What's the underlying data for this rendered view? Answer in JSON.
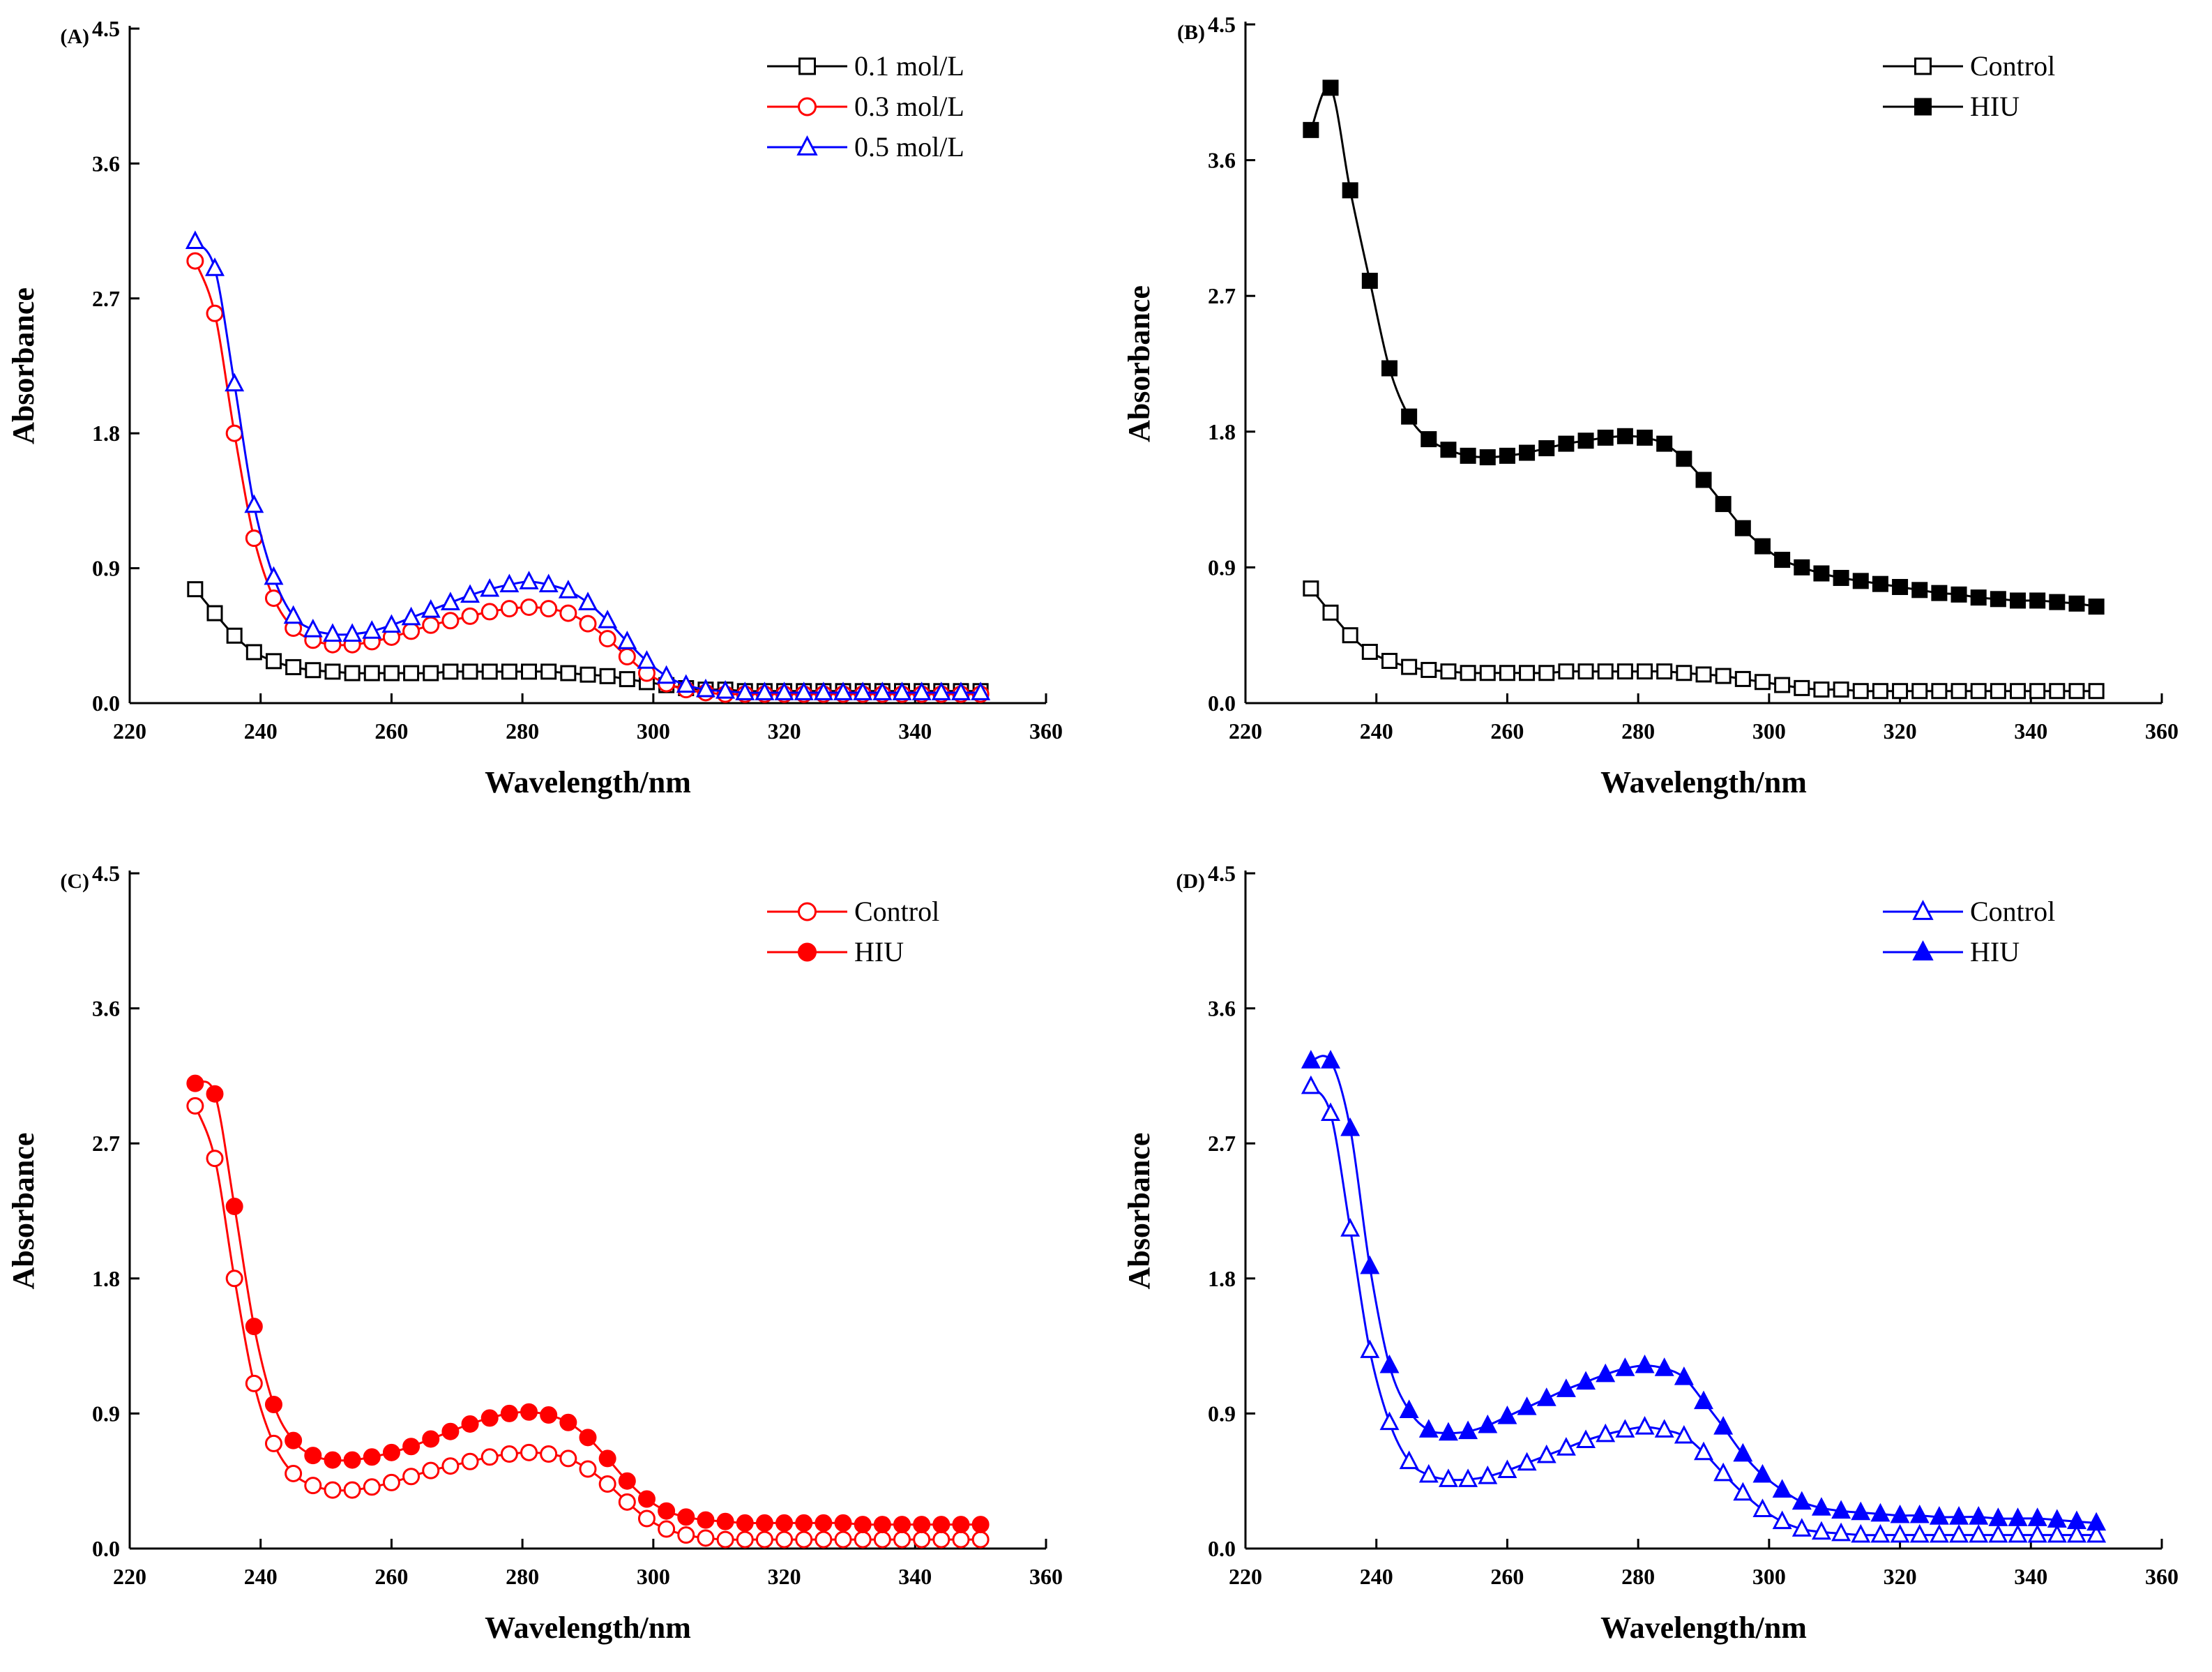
{
  "figure": {
    "panels": [
      {
        "label": "(A)",
        "legend": [
          "0.1 mol/L",
          "0.3 mol/L",
          "0.5 mol/L"
        ]
      },
      {
        "label": "(B)",
        "legend": [
          "Control",
          "HIU"
        ]
      },
      {
        "label": "(C)",
        "legend": [
          "Control",
          "HIU"
        ]
      },
      {
        "label": "(D)",
        "legend": [
          "Control",
          "HIU"
        ]
      }
    ]
  },
  "chart_data": [
    {
      "type": "line",
      "panel_label": "(A)",
      "xlabel": "Wavelength/nm",
      "ylabel": "Absorbance",
      "xlim": [
        220,
        360
      ],
      "ylim": [
        0,
        4.5
      ],
      "xticks": [
        220,
        240,
        260,
        280,
        300,
        320,
        340,
        360
      ],
      "yticks": [
        0.0,
        0.9,
        1.8,
        2.7,
        3.6,
        4.5
      ],
      "grid": false,
      "legend_position": "top-right",
      "x": {
        "start": 230,
        "step": 3,
        "count": 41
      },
      "series": [
        {
          "name": "0.1 mol/L",
          "color": "#000000",
          "marker": "square",
          "filled": false,
          "values": [
            0.76,
            0.6,
            0.45,
            0.34,
            0.28,
            0.24,
            0.22,
            0.21,
            0.2,
            0.2,
            0.2,
            0.2,
            0.2,
            0.21,
            0.21,
            0.21,
            0.21,
            0.21,
            0.21,
            0.2,
            0.19,
            0.18,
            0.16,
            0.14,
            0.12,
            0.1,
            0.09,
            0.09,
            0.08,
            0.08,
            0.08,
            0.08,
            0.08,
            0.08,
            0.08,
            0.08,
            0.08,
            0.08,
            0.08,
            0.08,
            0.08
          ]
        },
        {
          "name": "0.3 mol/L",
          "color": "#ff0000",
          "marker": "circle",
          "filled": false,
          "values": [
            2.95,
            2.6,
            1.8,
            1.1,
            0.7,
            0.5,
            0.42,
            0.39,
            0.39,
            0.41,
            0.44,
            0.48,
            0.52,
            0.55,
            0.58,
            0.61,
            0.63,
            0.64,
            0.63,
            0.6,
            0.53,
            0.43,
            0.31,
            0.2,
            0.13,
            0.09,
            0.07,
            0.06,
            0.06,
            0.06,
            0.06,
            0.06,
            0.06,
            0.06,
            0.06,
            0.06,
            0.06,
            0.06,
            0.06,
            0.06,
            0.06
          ]
        },
        {
          "name": "0.5 mol/L",
          "color": "#0000ff",
          "marker": "triangle",
          "filled": false,
          "values": [
            3.08,
            2.9,
            2.13,
            1.32,
            0.84,
            0.58,
            0.49,
            0.46,
            0.46,
            0.48,
            0.52,
            0.57,
            0.62,
            0.67,
            0.72,
            0.76,
            0.79,
            0.81,
            0.79,
            0.75,
            0.67,
            0.55,
            0.41,
            0.28,
            0.18,
            0.12,
            0.09,
            0.08,
            0.07,
            0.07,
            0.07,
            0.07,
            0.07,
            0.07,
            0.07,
            0.07,
            0.07,
            0.07,
            0.07,
            0.07,
            0.07
          ]
        }
      ]
    },
    {
      "type": "line",
      "panel_label": "(B)",
      "xlabel": "Wavelength/nm",
      "ylabel": "Absorbance",
      "xlim": [
        220,
        360
      ],
      "ylim": [
        0,
        4.5
      ],
      "xticks": [
        220,
        240,
        260,
        280,
        300,
        320,
        340,
        360
      ],
      "yticks": [
        0.0,
        0.9,
        1.8,
        2.7,
        3.6,
        4.5
      ],
      "grid": false,
      "legend_position": "top-right",
      "x": {
        "start": 230,
        "step": 3,
        "count": 41
      },
      "series": [
        {
          "name": "Control",
          "color": "#000000",
          "marker": "square",
          "filled": false,
          "values": [
            0.76,
            0.6,
            0.45,
            0.34,
            0.28,
            0.24,
            0.22,
            0.21,
            0.2,
            0.2,
            0.2,
            0.2,
            0.2,
            0.21,
            0.21,
            0.21,
            0.21,
            0.21,
            0.21,
            0.2,
            0.19,
            0.18,
            0.16,
            0.14,
            0.12,
            0.1,
            0.09,
            0.09,
            0.08,
            0.08,
            0.08,
            0.08,
            0.08,
            0.08,
            0.08,
            0.08,
            0.08,
            0.08,
            0.08,
            0.08,
            0.08
          ]
        },
        {
          "name": "HIU",
          "color": "#000000",
          "marker": "square",
          "filled": true,
          "values": [
            3.8,
            4.08,
            3.4,
            2.8,
            2.22,
            1.9,
            1.75,
            1.68,
            1.64,
            1.63,
            1.64,
            1.66,
            1.69,
            1.72,
            1.74,
            1.76,
            1.77,
            1.76,
            1.72,
            1.62,
            1.48,
            1.32,
            1.16,
            1.04,
            0.95,
            0.9,
            0.86,
            0.83,
            0.81,
            0.79,
            0.77,
            0.75,
            0.73,
            0.72,
            0.7,
            0.69,
            0.68,
            0.68,
            0.67,
            0.66,
            0.64
          ]
        }
      ]
    },
    {
      "type": "line",
      "panel_label": "(C)",
      "xlabel": "Wavelength/nm",
      "ylabel": "Absorbance",
      "xlim": [
        220,
        360
      ],
      "ylim": [
        0,
        4.5
      ],
      "xticks": [
        220,
        240,
        260,
        280,
        300,
        320,
        340,
        360
      ],
      "yticks": [
        0.0,
        0.9,
        1.8,
        2.7,
        3.6,
        4.5
      ],
      "grid": false,
      "legend_position": "top-right",
      "x": {
        "start": 230,
        "step": 3,
        "count": 41
      },
      "series": [
        {
          "name": "Control",
          "color": "#ff0000",
          "marker": "circle",
          "filled": false,
          "values": [
            2.95,
            2.6,
            1.8,
            1.1,
            0.7,
            0.5,
            0.42,
            0.39,
            0.39,
            0.41,
            0.44,
            0.48,
            0.52,
            0.55,
            0.58,
            0.61,
            0.63,
            0.64,
            0.63,
            0.6,
            0.53,
            0.43,
            0.31,
            0.2,
            0.13,
            0.09,
            0.07,
            0.06,
            0.06,
            0.06,
            0.06,
            0.06,
            0.06,
            0.06,
            0.06,
            0.06,
            0.06,
            0.06,
            0.06,
            0.06,
            0.06
          ]
        },
        {
          "name": "HIU",
          "color": "#ff0000",
          "marker": "circle",
          "filled": true,
          "values": [
            3.1,
            3.03,
            2.28,
            1.48,
            0.96,
            0.72,
            0.62,
            0.59,
            0.59,
            0.61,
            0.64,
            0.68,
            0.73,
            0.78,
            0.83,
            0.87,
            0.9,
            0.91,
            0.89,
            0.84,
            0.74,
            0.6,
            0.45,
            0.33,
            0.25,
            0.21,
            0.19,
            0.18,
            0.17,
            0.17,
            0.17,
            0.17,
            0.17,
            0.17,
            0.16,
            0.16,
            0.16,
            0.16,
            0.16,
            0.16,
            0.16
          ]
        }
      ]
    },
    {
      "type": "line",
      "panel_label": "(D)",
      "xlabel": "Wavelength/nm",
      "ylabel": "Absorbance",
      "xlim": [
        220,
        360
      ],
      "ylim": [
        0,
        4.5
      ],
      "xticks": [
        220,
        240,
        260,
        280,
        300,
        320,
        340,
        360
      ],
      "yticks": [
        0.0,
        0.9,
        1.8,
        2.7,
        3.6,
        4.5
      ],
      "grid": false,
      "legend_position": "top-right",
      "x": {
        "start": 230,
        "step": 3,
        "count": 41
      },
      "series": [
        {
          "name": "Control",
          "color": "#0000ff",
          "marker": "triangle",
          "filled": false,
          "values": [
            3.08,
            2.9,
            2.13,
            1.32,
            0.84,
            0.58,
            0.49,
            0.46,
            0.46,
            0.48,
            0.52,
            0.57,
            0.62,
            0.67,
            0.72,
            0.76,
            0.79,
            0.81,
            0.79,
            0.75,
            0.64,
            0.5,
            0.37,
            0.26,
            0.18,
            0.13,
            0.11,
            0.1,
            0.09,
            0.09,
            0.09,
            0.09,
            0.09,
            0.09,
            0.09,
            0.09,
            0.09,
            0.09,
            0.09,
            0.09,
            0.09
          ]
        },
        {
          "name": "HIU",
          "color": "#0000ff",
          "marker": "triangle",
          "filled": true,
          "values": [
            3.25,
            3.25,
            2.8,
            1.88,
            1.22,
            0.92,
            0.79,
            0.77,
            0.78,
            0.82,
            0.88,
            0.94,
            1.0,
            1.06,
            1.11,
            1.16,
            1.2,
            1.22,
            1.2,
            1.14,
            0.98,
            0.81,
            0.63,
            0.49,
            0.39,
            0.31,
            0.27,
            0.25,
            0.24,
            0.23,
            0.22,
            0.22,
            0.21,
            0.21,
            0.21,
            0.2,
            0.2,
            0.2,
            0.19,
            0.18,
            0.17
          ]
        }
      ]
    }
  ]
}
